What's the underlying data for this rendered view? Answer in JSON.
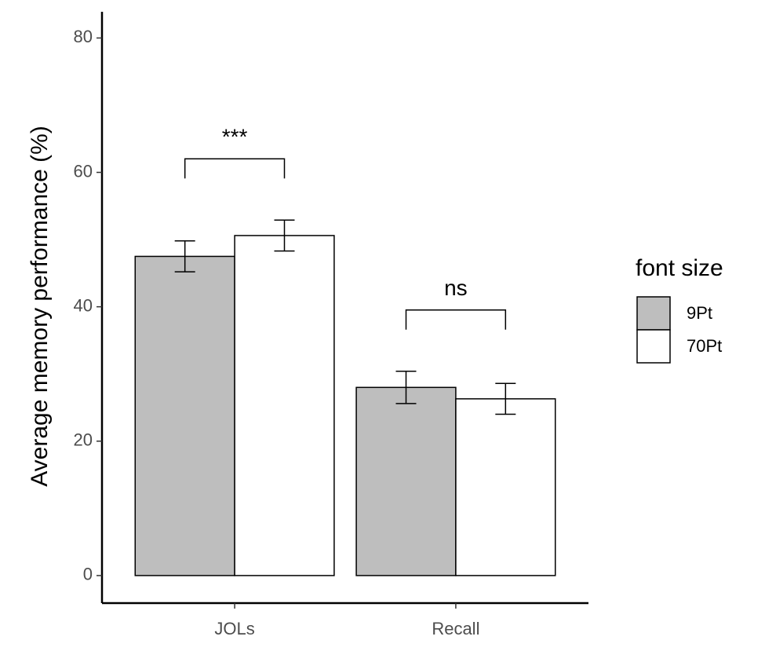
{
  "chart_data": {
    "type": "bar",
    "y_label": "Average memory performance (%)",
    "categories": [
      "JOLs",
      "Recall"
    ],
    "legend_title": "font size",
    "series": [
      {
        "name": "9Pt",
        "color": "#bebebe",
        "values": [
          47.5,
          28.0
        ],
        "errors": [
          2.3,
          2.4
        ]
      },
      {
        "name": "70Pt",
        "color": "#ffffff",
        "values": [
          50.6,
          26.3
        ],
        "errors": [
          2.3,
          2.3
        ]
      }
    ],
    "annotations": [
      "***",
      "ns"
    ],
    "ylim": [
      -4.1,
      83.9
    ],
    "yticks": [
      0,
      20,
      40,
      60,
      80
    ],
    "grid": false
  }
}
